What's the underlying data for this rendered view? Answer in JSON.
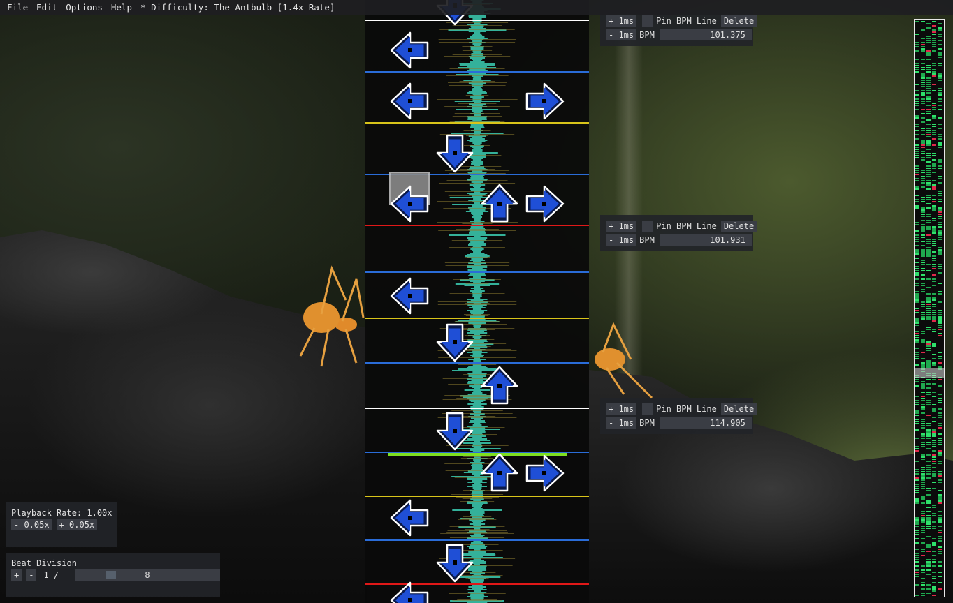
{
  "menu": {
    "items": [
      "File",
      "Edit",
      "Options",
      "Help"
    ],
    "title": "* Difficulty: The Antbulb [1.4x Rate]"
  },
  "bpm_widgets": [
    {
      "plus": "+ 1ms",
      "minus": "- 1ms",
      "pin": "Pin BPM Line",
      "delete": "Delete",
      "label": "BPM",
      "value": "101.375"
    },
    {
      "plus": "+ 1ms",
      "minus": "- 1ms",
      "pin": "Pin BPM Line",
      "delete": "Delete",
      "label": "BPM",
      "value": "101.931"
    },
    {
      "plus": "+ 1ms",
      "minus": "- 1ms",
      "pin": "Pin BPM Line",
      "delete": "Delete",
      "label": "BPM",
      "value": "114.905"
    }
  ],
  "playback": {
    "label": "Playback Rate: 1.00x",
    "decrease": "- 0.05x",
    "increase": "+ 0.05x"
  },
  "beat_division": {
    "title": "Beat Division",
    "plus": "+",
    "minus": "-",
    "prefix": "1 /",
    "value": "8"
  },
  "colors": {
    "arrow_fill": "#1f4fd6",
    "arrow_outline": "#ffffff",
    "waveform": "#3ccfb4",
    "line_white": "#ffffff",
    "line_blue": "#2a6cd8",
    "line_yellow": "#d8c41a",
    "line_red": "#e01818",
    "line_green": "#7ee020"
  },
  "notes": [
    {
      "dir": "down",
      "col": 1
    },
    {
      "dir": "left",
      "col": 0
    },
    {
      "dir": "right",
      "col": 3
    },
    {
      "dir": "up",
      "col": 2
    },
    {
      "dir": "left",
      "col": 0
    },
    {
      "dir": "down",
      "col": 1
    },
    {
      "dir": "left",
      "col": 0
    },
    {
      "dir": "up",
      "col": 2
    },
    {
      "dir": "right",
      "col": 3
    },
    {
      "dir": "left",
      "col": 0
    },
    {
      "dir": "down",
      "col": 1
    },
    {
      "dir": "up",
      "col": 2
    },
    {
      "dir": "down",
      "col": 1
    },
    {
      "dir": "up",
      "col": 2
    },
    {
      "dir": "right",
      "col": 3
    },
    {
      "dir": "left",
      "col": 0
    },
    {
      "dir": "down",
      "col": 1
    },
    {
      "dir": "left",
      "col": 0
    }
  ]
}
